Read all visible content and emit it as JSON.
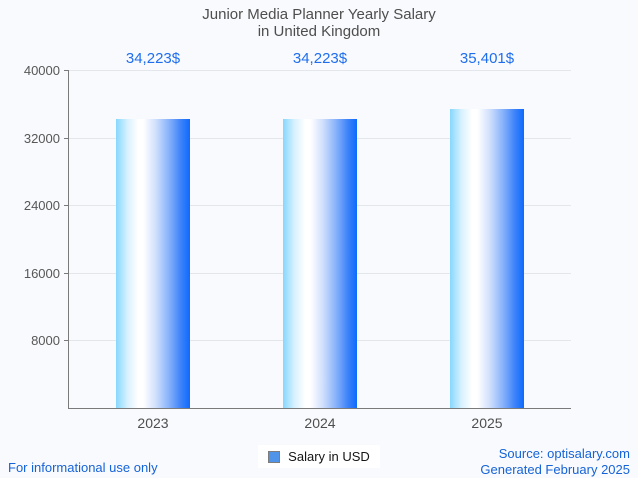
{
  "title": {
    "line1": "Junior Media Planner Yearly Salary",
    "line2": "in United Kingdom"
  },
  "chart_data": {
    "type": "bar",
    "title": "Junior Media Planner Yearly Salary in United Kingdom",
    "categories": [
      "2023",
      "2024",
      "2025"
    ],
    "values": [
      34223,
      34223,
      35401
    ],
    "value_labels": [
      "34,223$",
      "34,223$",
      "35,401$"
    ],
    "xlabel": "",
    "ylabel": "",
    "ylim": [
      0,
      40000
    ],
    "yticks": [
      40000,
      32000,
      24000,
      16000,
      8000
    ],
    "ytick_labels": [
      "40000",
      "32000",
      "24000",
      "16000",
      "8000"
    ],
    "grid": true,
    "legend": {
      "label": "Salary in USD",
      "position": "bottom-center"
    },
    "bar_gradient": [
      "#87d7fe",
      "#ffffff",
      "#0d6bfc"
    ]
  },
  "legend": {
    "label": "Salary in USD",
    "marker_color": "#4f94e8"
  },
  "footer": {
    "left": "For informational use only",
    "source": "Source: optisalary.com",
    "generated": "Generated February 2025"
  },
  "colors": {
    "value_label_blue": "#1e6eef",
    "footer_blue": "#1563d8",
    "axis_gray": "#7a7a7a",
    "grid_gray": "#e3e6ea",
    "title_gray": "#4e4e4e",
    "background": "#f9fafd"
  }
}
